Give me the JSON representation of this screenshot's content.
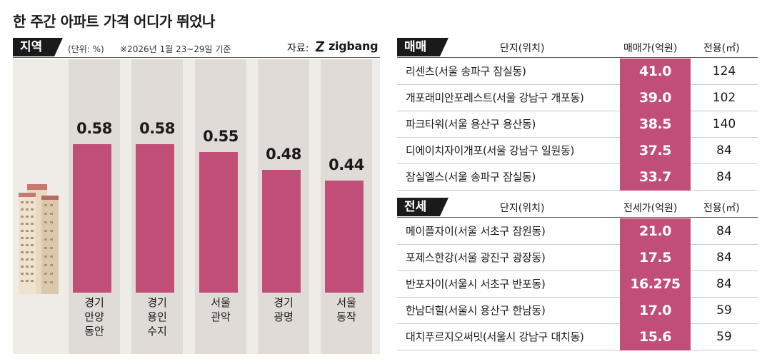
{
  "title": "한 주간 아파트 가격 어디가 뛰었나",
  "left_panel": {
    "section_label": "지역",
    "unit_note": "(단위: %)",
    "date_note": "※2026년 1월 23~29일 기준",
    "source_label": "자료:",
    "source_brand": "zigbang"
  },
  "chart_data": {
    "type": "bar",
    "title": "지역",
    "categories": [
      [
        "경기",
        "안양",
        "동안"
      ],
      [
        "경기",
        "용인",
        "수지"
      ],
      [
        "서울",
        "관악"
      ],
      [
        "경기",
        "광명"
      ],
      [
        "서울",
        "동작"
      ]
    ],
    "values": [
      0.58,
      0.58,
      0.55,
      0.48,
      0.44
    ],
    "value_labels": [
      "0.58",
      "0.58",
      "0.55",
      "0.48",
      "0.44"
    ],
    "ylabel": "(단위: %)",
    "ylim": [
      0,
      0.88
    ]
  },
  "sale_table": {
    "section_label": "매매",
    "headers": {
      "name": "단지(위치)",
      "price": "매매가(억원)",
      "area": "전용(㎡)"
    },
    "rows": [
      {
        "name": "리센츠(서울 송파구 잠실동)",
        "price": "41.0",
        "area": "124"
      },
      {
        "name": "개포래미안포레스트(서울 강남구 개포동)",
        "price": "39.0",
        "area": "102"
      },
      {
        "name": "파크타워(서울 용산구 용산동)",
        "price": "38.5",
        "area": "140"
      },
      {
        "name": "디에이치자이개포(서울 강남구 일원동)",
        "price": "37.5",
        "area": "84"
      },
      {
        "name": "잠실엘스(서울 송파구 잠실동)",
        "price": "33.7",
        "area": "84"
      }
    ]
  },
  "jeonse_table": {
    "section_label": "전세",
    "headers": {
      "name": "단지(위치)",
      "price": "전세가(억원)",
      "area": "전용(㎡)"
    },
    "rows": [
      {
        "name": "메이플자이(서울 서초구 잠원동)",
        "price": "21.0",
        "area": "84"
      },
      {
        "name": "포제스한강(서울 광진구 광장동)",
        "price": "17.5",
        "area": "84"
      },
      {
        "name": "반포자이(서울시 서초구 반포동)",
        "price": "16.275",
        "area": "84"
      },
      {
        "name": "한남더힐(서울시 용산구 한남동)",
        "price": "17.0",
        "area": "59"
      },
      {
        "name": "대치푸르지오써밋(서울시 강남구 대치동)",
        "price": "15.6",
        "area": "59"
      }
    ]
  }
}
